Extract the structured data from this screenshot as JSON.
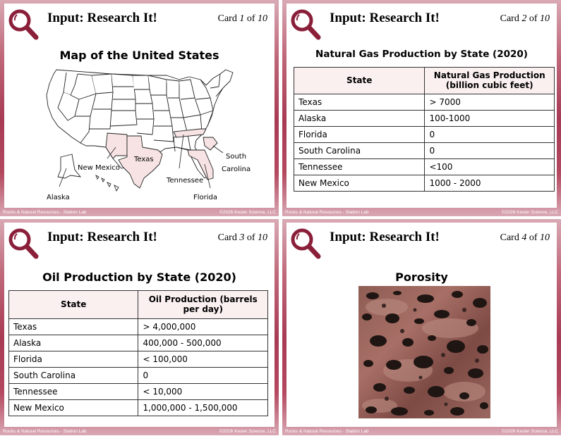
{
  "cards": [
    {
      "header_title": "Input: Research It!",
      "card_prefix": "Card ",
      "card_number": "1",
      "card_suffix": " of ",
      "card_total": "10",
      "subtitle": "Map of the United States",
      "map_labels": {
        "texas": "Texas",
        "new_mexico": "New Mexico",
        "tennessee": "Tennessee",
        "south": "South",
        "carolina": "Carolina",
        "florida": "Florida",
        "alaska": "Alaska"
      },
      "footer_left": "Rocks & Natural Resources - Station Lab",
      "footer_right": "©2026 Kesler Science, LLC"
    },
    {
      "header_title": "Input: Research It!",
      "card_prefix": "Card ",
      "card_number": "2",
      "card_suffix": " of ",
      "card_total": "10",
      "subtitle": "Natural Gas Production by State (2020)",
      "table": {
        "headers": [
          "State",
          "Natural Gas Production (billion cubic feet)"
        ],
        "rows": [
          [
            "Texas",
            "> 7000"
          ],
          [
            "Alaska",
            "100-1000"
          ],
          [
            "Florida",
            "0"
          ],
          [
            "South Carolina",
            "0"
          ],
          [
            "Tennessee",
            "<100"
          ],
          [
            "New Mexico",
            "1000 - 2000"
          ]
        ]
      },
      "footer_left": "Rocks & Natural Resources - Station Lab",
      "footer_right": "©2026 Kesler Science, LLC"
    },
    {
      "header_title": "Input: Research It!",
      "card_prefix": "Card ",
      "card_number": "3",
      "card_suffix": " of ",
      "card_total": "10",
      "subtitle": "Oil Production by State (2020)",
      "table": {
        "headers": [
          "State",
          "Oil Production (barrels per day)"
        ],
        "rows": [
          [
            "Texas",
            "> 4,000,000"
          ],
          [
            "Alaska",
            "400,000 - 500,000"
          ],
          [
            "Florida",
            "< 100,000"
          ],
          [
            "South Carolina",
            "0"
          ],
          [
            "Tennessee",
            "< 10,000"
          ],
          [
            "New Mexico",
            "1,000,000 - 1,500,000"
          ]
        ]
      },
      "footer_left": "Rocks & Natural Resources - Station Lab",
      "footer_right": "©2026 Kesler Science, LLC"
    },
    {
      "header_title": "Input: Research It!",
      "card_prefix": "Card ",
      "card_number": "4",
      "card_suffix": " of ",
      "card_total": "10",
      "subtitle": "Porosity",
      "footer_left": "Rocks & Natural Resources - Station Lab",
      "footer_right": "©2026 Kesler Science, LLC"
    }
  ],
  "colors": {
    "frame": "#a83a55",
    "magnifier": "#8a1f3a",
    "highlight_state": "#f7e3e3",
    "table_header": "#fbf0f0"
  },
  "icons": [
    "magnifying-glass-icon"
  ]
}
